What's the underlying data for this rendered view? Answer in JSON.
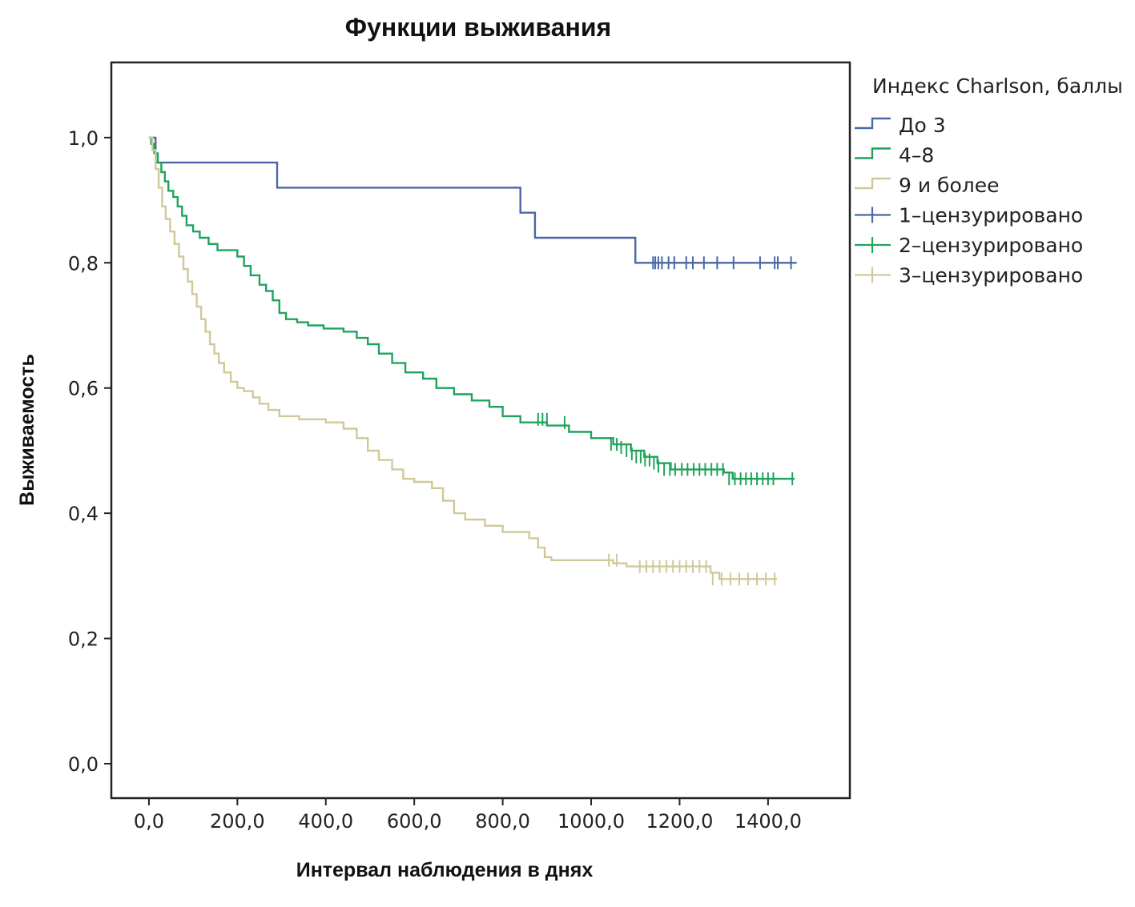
{
  "chart_data": {
    "type": "line",
    "subtype": "kaplan-meier step survival curve",
    "title": "Функции выживания",
    "xlabel": "Интервал наблюдения в днях",
    "ylabel": "Выживаемость",
    "xlim": [
      -85,
      1585
    ],
    "ylim": [
      -0.055,
      1.12
    ],
    "xticks": [
      0,
      200,
      400,
      600,
      800,
      1000,
      1200,
      1400
    ],
    "xtick_labels": [
      "0,0",
      "200,0",
      "400,0",
      "600,0",
      "800,0",
      "1000,0",
      "1200,0",
      "1400,0"
    ],
    "yticks": [
      0.0,
      0.2,
      0.4,
      0.6,
      0.8,
      1.0
    ],
    "ytick_labels": [
      "0,0",
      "0,2",
      "0,4",
      "0,6",
      "0,8",
      "1,0"
    ],
    "grid": false,
    "legend_title": "Индекс Charlson, баллы",
    "legend_position": "outside-right-top",
    "legend": [
      {
        "label": "До 3",
        "kind": "line",
        "color": "#4a67a8"
      },
      {
        "label": "4–8",
        "kind": "line",
        "color": "#1fa35c"
      },
      {
        "label": "9 и более",
        "kind": "line",
        "color": "#cfc99a"
      },
      {
        "label": "1–цензурировано",
        "kind": "censor",
        "color": "#4a67a8"
      },
      {
        "label": "2–цензурировано",
        "kind": "censor",
        "color": "#1fa35c"
      },
      {
        "label": "3–цензурировано",
        "kind": "censor",
        "color": "#cfc99a"
      }
    ],
    "series": [
      {
        "name": "До 3",
        "color": "#4a67a8",
        "steps": [
          [
            0,
            1.0
          ],
          [
            15,
            1.0
          ],
          [
            15,
            0.96
          ],
          [
            290,
            0.96
          ],
          [
            290,
            0.92
          ],
          [
            840,
            0.92
          ],
          [
            840,
            0.88
          ],
          [
            873,
            0.88
          ],
          [
            873,
            0.84
          ],
          [
            1100,
            0.84
          ],
          [
            1100,
            0.8
          ],
          [
            1465,
            0.8
          ]
        ],
        "censored": [
          [
            1140,
            0.8
          ],
          [
            1145,
            0.8
          ],
          [
            1152,
            0.8
          ],
          [
            1160,
            0.8
          ],
          [
            1175,
            0.8
          ],
          [
            1188,
            0.8
          ],
          [
            1215,
            0.8
          ],
          [
            1230,
            0.8
          ],
          [
            1255,
            0.8
          ],
          [
            1285,
            0.8
          ],
          [
            1322,
            0.8
          ],
          [
            1382,
            0.8
          ],
          [
            1415,
            0.8
          ],
          [
            1422,
            0.8
          ],
          [
            1452,
            0.8
          ]
        ]
      },
      {
        "name": "4–8",
        "color": "#1fa35c",
        "steps": [
          [
            0,
            1.0
          ],
          [
            5,
            0.99
          ],
          [
            12,
            0.975
          ],
          [
            20,
            0.96
          ],
          [
            28,
            0.945
          ],
          [
            36,
            0.93
          ],
          [
            44,
            0.915
          ],
          [
            55,
            0.905
          ],
          [
            65,
            0.89
          ],
          [
            75,
            0.875
          ],
          [
            85,
            0.86
          ],
          [
            100,
            0.85
          ],
          [
            115,
            0.84
          ],
          [
            135,
            0.83
          ],
          [
            155,
            0.82
          ],
          [
            180,
            0.82
          ],
          [
            200,
            0.81
          ],
          [
            215,
            0.795
          ],
          [
            230,
            0.78
          ],
          [
            250,
            0.765
          ],
          [
            265,
            0.755
          ],
          [
            280,
            0.74
          ],
          [
            295,
            0.72
          ],
          [
            310,
            0.71
          ],
          [
            335,
            0.705
          ],
          [
            360,
            0.7
          ],
          [
            395,
            0.695
          ],
          [
            440,
            0.69
          ],
          [
            470,
            0.68
          ],
          [
            495,
            0.67
          ],
          [
            520,
            0.655
          ],
          [
            550,
            0.64
          ],
          [
            580,
            0.625
          ],
          [
            620,
            0.615
          ],
          [
            650,
            0.6
          ],
          [
            690,
            0.59
          ],
          [
            730,
            0.58
          ],
          [
            770,
            0.57
          ],
          [
            800,
            0.555
          ],
          [
            840,
            0.545
          ],
          [
            900,
            0.54
          ],
          [
            950,
            0.53
          ],
          [
            1000,
            0.52
          ],
          [
            1050,
            0.51
          ],
          [
            1090,
            0.5
          ],
          [
            1120,
            0.49
          ],
          [
            1150,
            0.48
          ],
          [
            1180,
            0.47
          ],
          [
            1300,
            0.465
          ],
          [
            1320,
            0.455
          ],
          [
            1460,
            0.455
          ]
        ],
        "censored": [
          [
            880,
            0.55
          ],
          [
            890,
            0.55
          ],
          [
            900,
            0.55
          ],
          [
            940,
            0.545
          ],
          [
            1045,
            0.51
          ],
          [
            1058,
            0.51
          ],
          [
            1068,
            0.505
          ],
          [
            1080,
            0.5
          ],
          [
            1092,
            0.495
          ],
          [
            1102,
            0.49
          ],
          [
            1112,
            0.49
          ],
          [
            1122,
            0.485
          ],
          [
            1132,
            0.485
          ],
          [
            1142,
            0.48
          ],
          [
            1152,
            0.475
          ],
          [
            1165,
            0.47
          ],
          [
            1178,
            0.47
          ],
          [
            1190,
            0.47
          ],
          [
            1205,
            0.47
          ],
          [
            1218,
            0.47
          ],
          [
            1232,
            0.47
          ],
          [
            1245,
            0.47
          ],
          [
            1258,
            0.47
          ],
          [
            1272,
            0.47
          ],
          [
            1285,
            0.47
          ],
          [
            1298,
            0.47
          ],
          [
            1312,
            0.455
          ],
          [
            1325,
            0.455
          ],
          [
            1338,
            0.455
          ],
          [
            1350,
            0.455
          ],
          [
            1362,
            0.455
          ],
          [
            1375,
            0.455
          ],
          [
            1388,
            0.455
          ],
          [
            1400,
            0.455
          ],
          [
            1412,
            0.455
          ],
          [
            1455,
            0.455
          ]
        ]
      },
      {
        "name": "9 и более",
        "color": "#cfc99a",
        "steps": [
          [
            0,
            1.0
          ],
          [
            8,
            0.98
          ],
          [
            15,
            0.95
          ],
          [
            22,
            0.92
          ],
          [
            30,
            0.89
          ],
          [
            38,
            0.87
          ],
          [
            48,
            0.85
          ],
          [
            58,
            0.83
          ],
          [
            68,
            0.81
          ],
          [
            78,
            0.79
          ],
          [
            88,
            0.77
          ],
          [
            98,
            0.75
          ],
          [
            108,
            0.73
          ],
          [
            118,
            0.71
          ],
          [
            128,
            0.69
          ],
          [
            138,
            0.67
          ],
          [
            148,
            0.655
          ],
          [
            158,
            0.64
          ],
          [
            170,
            0.625
          ],
          [
            185,
            0.61
          ],
          [
            200,
            0.6
          ],
          [
            215,
            0.595
          ],
          [
            235,
            0.585
          ],
          [
            250,
            0.575
          ],
          [
            270,
            0.565
          ],
          [
            295,
            0.555
          ],
          [
            340,
            0.55
          ],
          [
            400,
            0.545
          ],
          [
            440,
            0.535
          ],
          [
            470,
            0.52
          ],
          [
            495,
            0.5
          ],
          [
            520,
            0.485
          ],
          [
            550,
            0.47
          ],
          [
            575,
            0.455
          ],
          [
            600,
            0.45
          ],
          [
            640,
            0.44
          ],
          [
            665,
            0.42
          ],
          [
            690,
            0.4
          ],
          [
            715,
            0.39
          ],
          [
            760,
            0.38
          ],
          [
            800,
            0.37
          ],
          [
            860,
            0.36
          ],
          [
            880,
            0.345
          ],
          [
            895,
            0.33
          ],
          [
            910,
            0.325
          ],
          [
            1050,
            0.32
          ],
          [
            1080,
            0.315
          ],
          [
            1270,
            0.305
          ],
          [
            1290,
            0.295
          ],
          [
            1420,
            0.295
          ]
        ],
        "censored": [
          [
            1040,
            0.325
          ],
          [
            1058,
            0.325
          ],
          [
            1110,
            0.315
          ],
          [
            1125,
            0.315
          ],
          [
            1140,
            0.315
          ],
          [
            1155,
            0.315
          ],
          [
            1170,
            0.315
          ],
          [
            1185,
            0.315
          ],
          [
            1200,
            0.315
          ],
          [
            1215,
            0.315
          ],
          [
            1230,
            0.315
          ],
          [
            1245,
            0.315
          ],
          [
            1260,
            0.315
          ],
          [
            1275,
            0.295
          ],
          [
            1295,
            0.295
          ],
          [
            1315,
            0.295
          ],
          [
            1335,
            0.295
          ],
          [
            1355,
            0.295
          ],
          [
            1375,
            0.295
          ],
          [
            1395,
            0.295
          ],
          [
            1415,
            0.295
          ]
        ]
      }
    ]
  }
}
